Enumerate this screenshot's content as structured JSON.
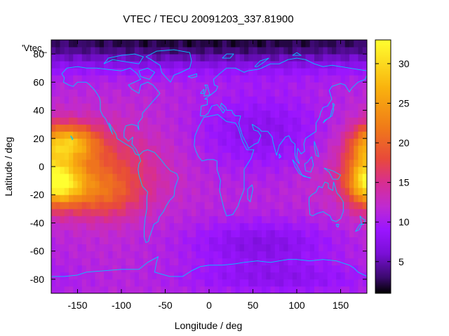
{
  "chart_data": {
    "type": "heatmap",
    "title": "VTEC / TECU 20091203_337.81900",
    "xlabel": "Longitude / deg",
    "ylabel": "Latitude / deg",
    "key_label": "'Vtec_",
    "xlim": [
      -180,
      180
    ],
    "ylim": [
      -90,
      90
    ],
    "xticks": [
      -150,
      -100,
      -50,
      0,
      50,
      100,
      150
    ],
    "yticks": [
      -80,
      -60,
      -40,
      -20,
      0,
      20,
      40,
      60,
      80
    ],
    "colorbar": {
      "range": [
        1,
        33
      ],
      "ticks": [
        5,
        10,
        15,
        20,
        25,
        30
      ],
      "colors": [
        "#000000",
        "#3b0a6e",
        "#7a0fd6",
        "#9a15ff",
        "#c02ad0",
        "#d82e90",
        "#e84a3a",
        "#f07b18",
        "#f9b30e",
        "#ffff30"
      ],
      "color_stops": [
        1,
        3,
        6,
        9,
        12,
        15,
        18,
        22,
        27,
        33
      ]
    },
    "cell_size_deg": [
      5,
      5
    ],
    "field_features": [
      {
        "name": "background",
        "value": 11.5
      },
      {
        "name": "pacific-crest-north",
        "lon": -160,
        "lat": 17,
        "value": 24,
        "width_lon": 22,
        "width_lat": 9
      },
      {
        "name": "pacific-crest-south",
        "lon": -170,
        "lat": -12,
        "value": 26,
        "width_lon": 20,
        "width_lat": 10
      },
      {
        "name": "pacific-band",
        "lon": -135,
        "lat": 0,
        "value": 18,
        "width_lon": 55,
        "width_lat": 20
      },
      {
        "name": "south-pacific-extension",
        "lon": -120,
        "lat": -20,
        "value": 17,
        "width_lon": 30,
        "width_lat": 12
      },
      {
        "name": "east-pacific-edge",
        "lon": 178,
        "lat": 0,
        "value": 18,
        "width_lon": 15,
        "width_lat": 18
      },
      {
        "name": "low-asia-europe",
        "lon": 60,
        "lat": 25,
        "value": 7.5,
        "width_lon": 55,
        "width_lat": 20
      },
      {
        "name": "low-southern-ocean",
        "lon": 60,
        "lat": -55,
        "value": 7,
        "width_lon": 60,
        "width_lat": 12
      },
      {
        "name": "low-arctic",
        "lon": 0,
        "lat": 90,
        "value": 2,
        "width_lon": 400,
        "width_lat": 14
      },
      {
        "name": "low-antarctic-rim",
        "lon": 80,
        "lat": -80,
        "value": 8,
        "width_lon": 80,
        "width_lat": 8
      }
    ],
    "coastline_color": "#00c8ff"
  }
}
